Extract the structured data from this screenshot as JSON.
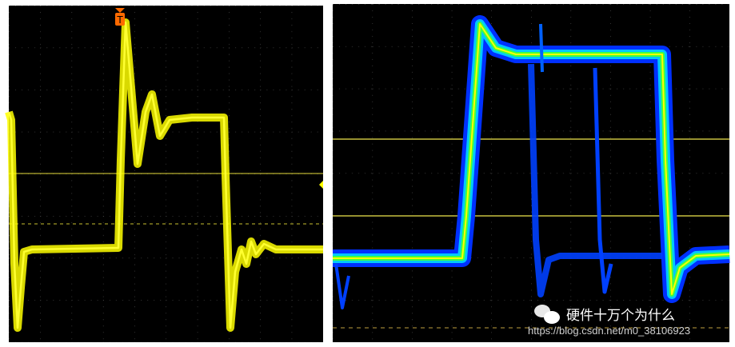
{
  "left_scope": {
    "trace_color": "#ffff00",
    "trigger_marker": "T",
    "trigger_color": "#ff6a00",
    "grid_divisions": {
      "horizontal": 10,
      "vertical": 8
    }
  },
  "right_scope": {
    "trace_colors": [
      "#0030ff",
      "#00c8ff",
      "#40ff40",
      "#ffff00"
    ],
    "grid_divisions": {
      "horizontal": 10,
      "vertical": 8
    }
  },
  "watermark": {
    "icon": "wechat-icon",
    "title": "硬件十万个为什么",
    "url": "https://blog.csdn.net/m0_38106923"
  }
}
